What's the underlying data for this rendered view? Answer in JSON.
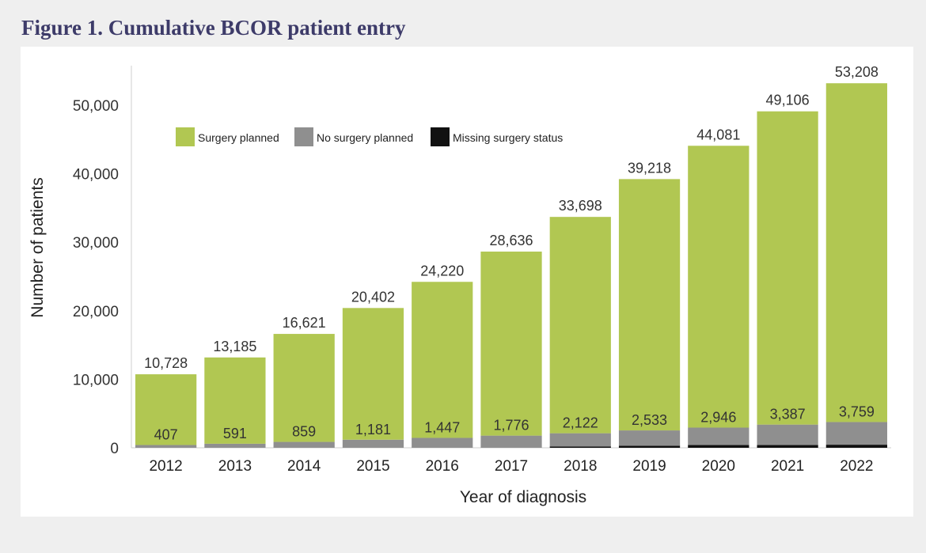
{
  "figure": {
    "title": "Figure 1. Cumulative BCOR patient entry"
  },
  "colors": {
    "surgery_planned": "#b1c752",
    "no_surgery_planned": "#8f8f8f",
    "missing_surgery_status": "#111111",
    "title": "#3d3b69"
  },
  "chart_data": {
    "type": "bar",
    "stacked": true,
    "title": "",
    "xlabel": "Year of diagnosis",
    "ylabel": "Number of patients",
    "ylim": [
      0,
      55000
    ],
    "yticks": [
      0,
      10000,
      20000,
      30000,
      40000,
      50000
    ],
    "ytick_labels": [
      "0",
      "10,000",
      "20,000",
      "30,000",
      "40,000",
      "50,000"
    ],
    "grid": false,
    "legend_position": "top-left",
    "categories": [
      "2012",
      "2013",
      "2014",
      "2015",
      "2016",
      "2017",
      "2018",
      "2019",
      "2020",
      "2021",
      "2022"
    ],
    "series": [
      {
        "name": "Surgery planned",
        "values": [
          10321,
          12594,
          15762,
          19221,
          22773,
          26860,
          31576,
          36685,
          41135,
          45719,
          49449
        ]
      },
      {
        "name": "No surgery planned",
        "values": [
          407,
          591,
          859,
          1181,
          1447,
          1776,
          1922,
          2233,
          2546,
          2987,
          3309
        ]
      },
      {
        "name": "Missing surgery status",
        "values": [
          0,
          0,
          0,
          0,
          0,
          0,
          200,
          300,
          400,
          400,
          450
        ]
      }
    ],
    "total_labels": [
      "10,728",
      "13,185",
      "16,621",
      "20,402",
      "24,220",
      "28,636",
      "33,698",
      "39,218",
      "44,081",
      "49,106",
      "53,208"
    ],
    "inner_labels": [
      "407",
      "591",
      "859",
      "1,181",
      "1,447",
      "1,776",
      "2,122",
      "2,533",
      "2,946",
      "3,387",
      "3,759"
    ]
  }
}
